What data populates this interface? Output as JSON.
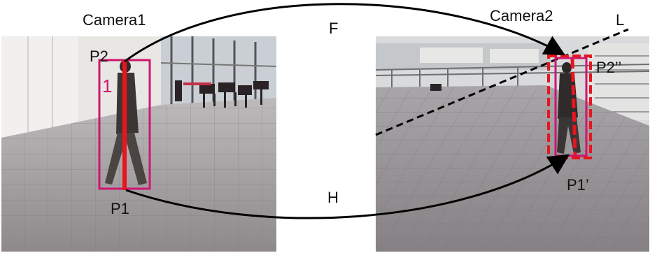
{
  "cameras": [
    {
      "label": "Camera1",
      "marker": "1"
    },
    {
      "label": "Camera2",
      "marker": ""
    }
  ],
  "points": {
    "p1": "P1",
    "p2": "P2",
    "p1_prime": "P1’",
    "p2_prime": "P2’’"
  },
  "transforms": {
    "f": "F",
    "h": "H",
    "l": "L"
  },
  "colors": {
    "box_magenta": "#d0156f",
    "line_red": "#e8141e",
    "arrow": "#000000"
  }
}
